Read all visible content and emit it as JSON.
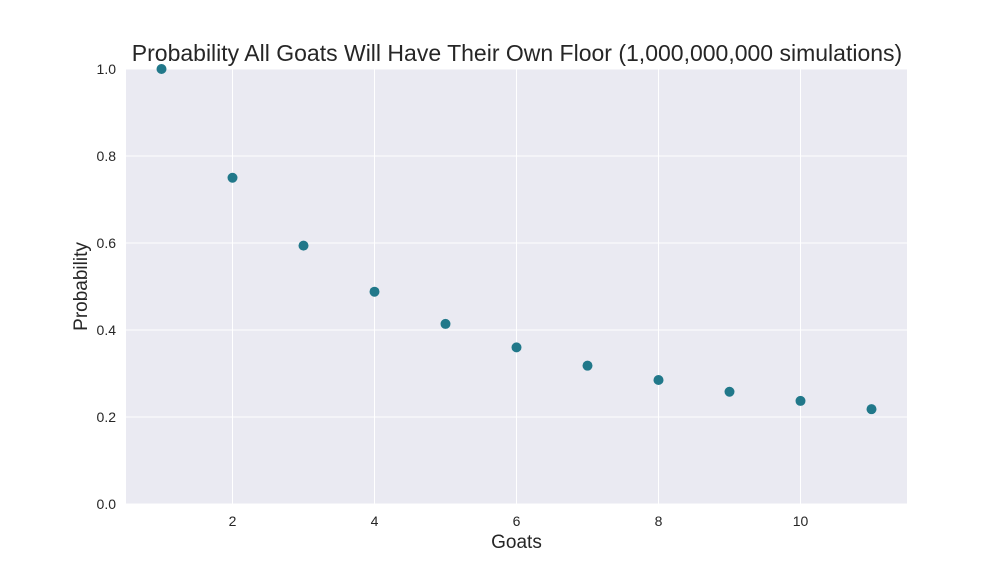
{
  "chart_data": {
    "type": "scatter",
    "title": "Probability All Goats Will Have Their Own Floor (1,000,000,000 simulations)",
    "xlabel": "Goats",
    "ylabel": "Probability",
    "x": [
      1,
      2,
      3,
      4,
      5,
      6,
      7,
      8,
      9,
      10,
      11
    ],
    "y": [
      1.0,
      0.75,
      0.594,
      0.488,
      0.414,
      0.36,
      0.318,
      0.285,
      0.258,
      0.237,
      0.218
    ],
    "xlim": [
      0.5,
      11.5
    ],
    "ylim": [
      0.0,
      1.0
    ],
    "xticks": [
      2,
      4,
      6,
      8,
      10
    ],
    "yticks": [
      0.0,
      0.2,
      0.4,
      0.6,
      0.8,
      1.0
    ],
    "ytick_labels": [
      "0.0",
      "0.2",
      "0.4",
      "0.6",
      "0.8",
      "1.0"
    ],
    "grid": true,
    "background_color": "#eaeaf2",
    "grid_color": "#ffffff",
    "marker_color": "#21788a"
  }
}
